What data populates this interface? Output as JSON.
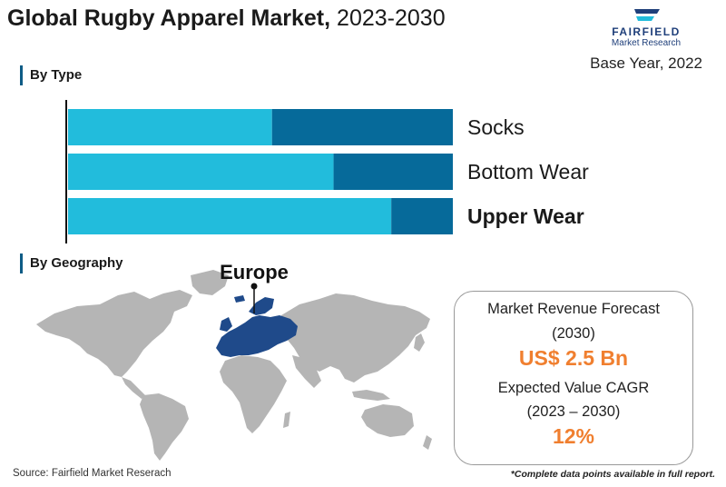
{
  "header": {
    "title_bold": "Global Rugby Apparel Market,",
    "title_years": " 2023-2030",
    "base_year": "Base Year, 2022"
  },
  "logo": {
    "name": "FAIRFIELD",
    "sub": "Market Research"
  },
  "sections": {
    "by_type": "By Type",
    "by_geography": "By Geography"
  },
  "chart_data": {
    "type": "bar",
    "orientation": "horizontal",
    "stacked": true,
    "categories": [
      "Socks",
      "Bottom Wear",
      "Upper Wear"
    ],
    "highlight_category": "Upper Wear",
    "series": [
      {
        "values": [
          53,
          69,
          84
        ],
        "color": "#22bcdc"
      },
      {
        "values": [
          47,
          31,
          16
        ],
        "color": "#066a9a"
      }
    ],
    "xlim": [
      0,
      100
    ]
  },
  "geography": {
    "highlight_region": "Europe",
    "colors": {
      "land": "#b5b5b5",
      "highlight": "#1f4a8a"
    }
  },
  "forecast": {
    "revenue_label": "Market Revenue Forecast",
    "revenue_period": "(2030)",
    "revenue_value": "US$ 2.5 Bn",
    "cagr_label": "Expected Value CAGR",
    "cagr_period": "(2023 – 2030)",
    "cagr_value": "12%",
    "accent": "#f07f2f"
  },
  "footer": {
    "source": "Source: Fairfield Market Reserach",
    "note": "*Complete data points available in full report."
  }
}
